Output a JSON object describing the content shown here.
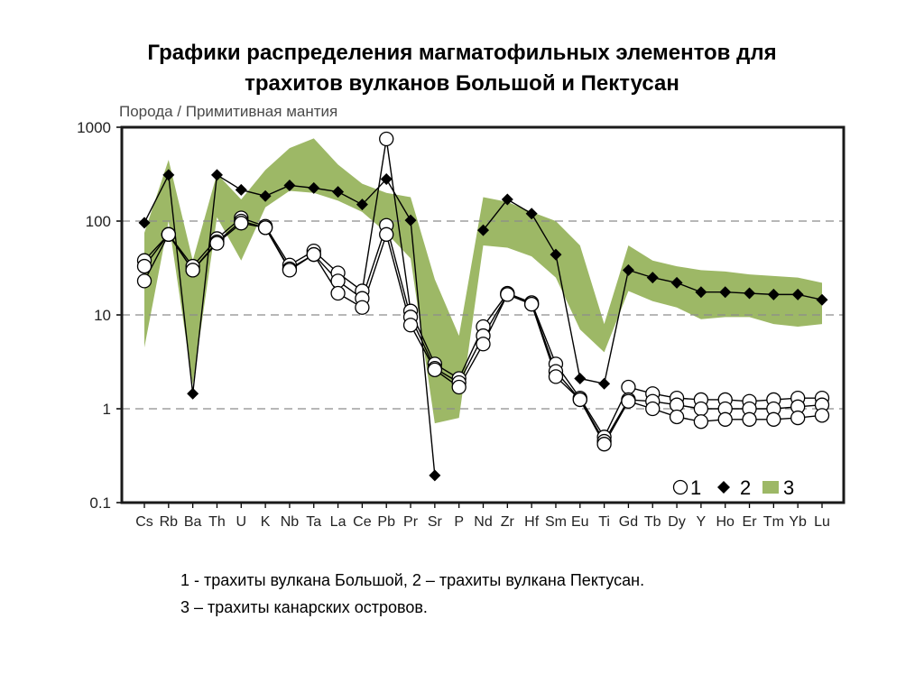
{
  "title": {
    "line1": "Графики распределения магматофильных элементов для",
    "line2": "трахитов вулканов Большой и Пектусан"
  },
  "caption": {
    "line1": "1 - трахиты вулкана Большой, 2 – трахиты вулкана Пектусан.",
    "line2": "3 – трахиты канарских островов."
  },
  "chart_data": {
    "type": "line",
    "ylabel": "Порода / Примитивная мантия",
    "yscale": "log",
    "ylim": [
      0.1,
      1000
    ],
    "yticks": [
      "0.1",
      "1",
      "10",
      "100",
      "1000"
    ],
    "grid": "dashed at 1, 10, 100",
    "categories": [
      "Cs",
      "Rb",
      "Ba",
      "Th",
      "U",
      "K",
      "Nb",
      "Ta",
      "La",
      "Ce",
      "Pb",
      "Pr",
      "Sr",
      "P",
      "Nd",
      "Zr",
      "Hf",
      "Sm",
      "Eu",
      "Ti",
      "Gd",
      "Tb",
      "Dy",
      "Y",
      "Ho",
      "Er",
      "Tm",
      "Yb",
      "Lu"
    ],
    "legend": {
      "position": "bottom-right",
      "labels": [
        "1",
        "2",
        "3"
      ]
    },
    "colors": {
      "band": "#9db866",
      "frame": "#1a1a1a",
      "grid": "#8c8c8c"
    },
    "series": [
      {
        "name": "1",
        "marker": "open-circle",
        "values": [
          38,
          72,
          33,
          65,
          108,
          88,
          34,
          48,
          28,
          18,
          750,
          11,
          3.0,
          2.1,
          7.5,
          17,
          13.5,
          3.0,
          1.3,
          0.5,
          1.7,
          1.45,
          1.3,
          1.25,
          1.25,
          1.2,
          1.25,
          1.3,
          1.3
        ]
      },
      {
        "marker": "open-circle",
        "values": [
          33,
          72,
          30,
          60,
          100,
          85,
          31,
          44,
          23,
          15,
          90,
          9.5,
          2.7,
          1.9,
          6,
          16.5,
          13,
          2.5,
          1.25,
          0.45,
          1.25,
          1.2,
          1.1,
          1.0,
          1.0,
          1.0,
          1.0,
          1.05,
          1.1
        ]
      },
      {
        "marker": "open-circle",
        "values": [
          23,
          72,
          30,
          58,
          95,
          85,
          30,
          44,
          17,
          12,
          72,
          7.8,
          2.6,
          1.7,
          4.9,
          16.5,
          13,
          2.2,
          1.25,
          0.42,
          1.2,
          1.0,
          0.82,
          0.73,
          0.77,
          0.77,
          0.77,
          0.8,
          0.85
        ]
      },
      {
        "name": "2",
        "marker": "diamond",
        "values": [
          96,
          310,
          1.45,
          310,
          215,
          185,
          240,
          225,
          205,
          150,
          280,
          102,
          0.195,
          null,
          80,
          170,
          120,
          44,
          2.1,
          1.85,
          30,
          25,
          22,
          17.5,
          17.5,
          17,
          16.5,
          16.5,
          14.5
        ]
      },
      {
        "name": "3",
        "type": "band",
        "upper": [
          75,
          450,
          38,
          320,
          170,
          350,
          600,
          760,
          400,
          250,
          200,
          180,
          24,
          6,
          180,
          160,
          125,
          100,
          55,
          8,
          55,
          38,
          33,
          30,
          29,
          27,
          26,
          25,
          22
        ],
        "lower": [
          4.5,
          100,
          1.8,
          110,
          38,
          140,
          210,
          200,
          165,
          125,
          75,
          40,
          0.7,
          0.8,
          55,
          52,
          42,
          25,
          7,
          4,
          18,
          14,
          12,
          9,
          9.5,
          9.5,
          8,
          7.5,
          8
        ]
      }
    ]
  }
}
